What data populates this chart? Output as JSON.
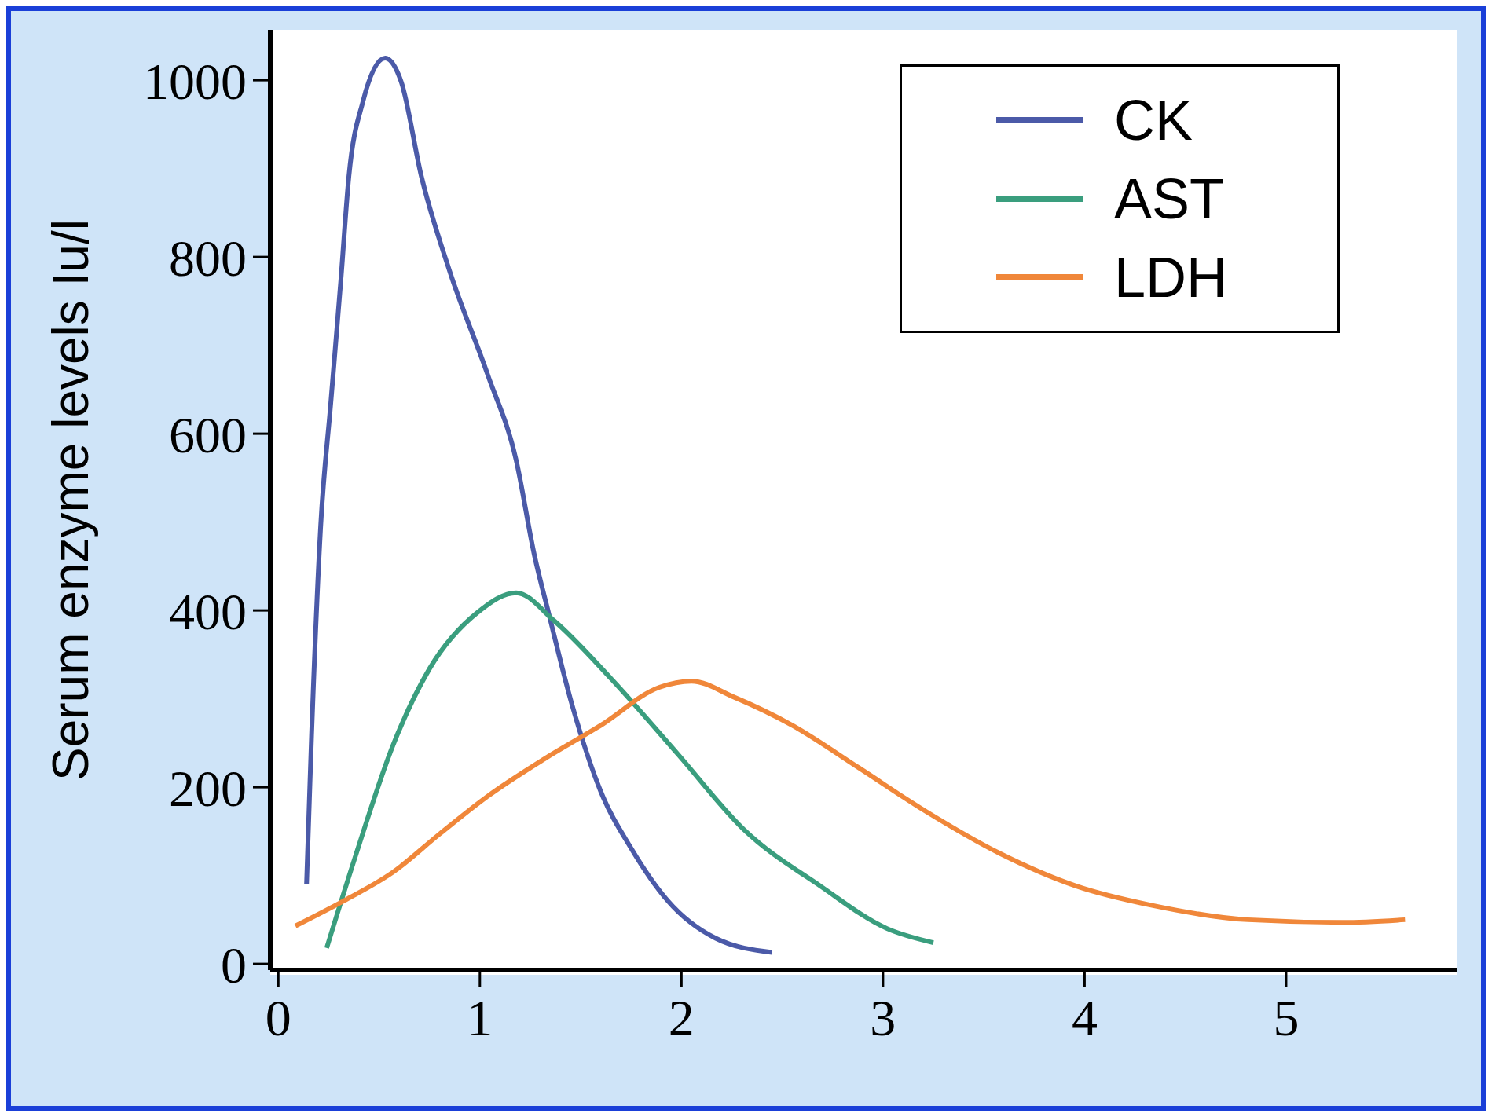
{
  "chart_data": {
    "type": "line",
    "ylabel": "Serum enzyme levels Iu/l",
    "xlim": [
      -0.04,
      5.85
    ],
    "ylim": [
      -7,
      1057
    ],
    "xticks": [
      0,
      1,
      2,
      3,
      4,
      5
    ],
    "yticks": [
      0,
      200,
      400,
      600,
      800,
      1000
    ],
    "legend": "top right",
    "grid": false,
    "marker": "none",
    "line_style": "solid",
    "series": [
      {
        "name": "CK",
        "color": "#4b5aa8",
        "x": [
          0.14,
          0.165,
          0.21,
          0.26,
          0.31,
          0.35,
          0.42,
          0.53,
          0.61,
          0.71,
          0.85,
          1.04,
          1.18,
          1.27,
          1.34,
          1.46,
          1.6,
          1.75,
          1.93,
          2.17,
          2.45
        ],
        "values": [
          90,
          259,
          495,
          634,
          773,
          891,
          976,
          1025,
          998,
          891,
          784,
          666,
          570,
          463,
          398,
          291,
          195,
          131,
          72,
          29,
          13
        ]
      },
      {
        "name": "AST",
        "color": "#3a9e7e",
        "x": [
          0.24,
          0.38,
          0.57,
          0.75,
          0.99,
          1.18,
          1.37,
          1.65,
          1.98,
          2.31,
          2.69,
          3.02,
          3.25
        ],
        "values": [
          18,
          120,
          248,
          334,
          398,
          420,
          388,
          323,
          238,
          152,
          88,
          40,
          24
        ]
      },
      {
        "name": "LDH",
        "color": "#f0873a",
        "x": [
          0.085,
          0.33,
          0.57,
          0.8,
          1.04,
          1.32,
          1.6,
          1.89,
          2.05,
          2.26,
          2.55,
          2.88,
          3.21,
          3.58,
          3.96,
          4.34,
          4.81,
          5.28,
          5.59
        ],
        "values": [
          43,
          72,
          104,
          147,
          190,
          232,
          270,
          313,
          320,
          302,
          270,
          222,
          173,
          125,
          88,
          66,
          50,
          47,
          50
        ]
      }
    ]
  }
}
